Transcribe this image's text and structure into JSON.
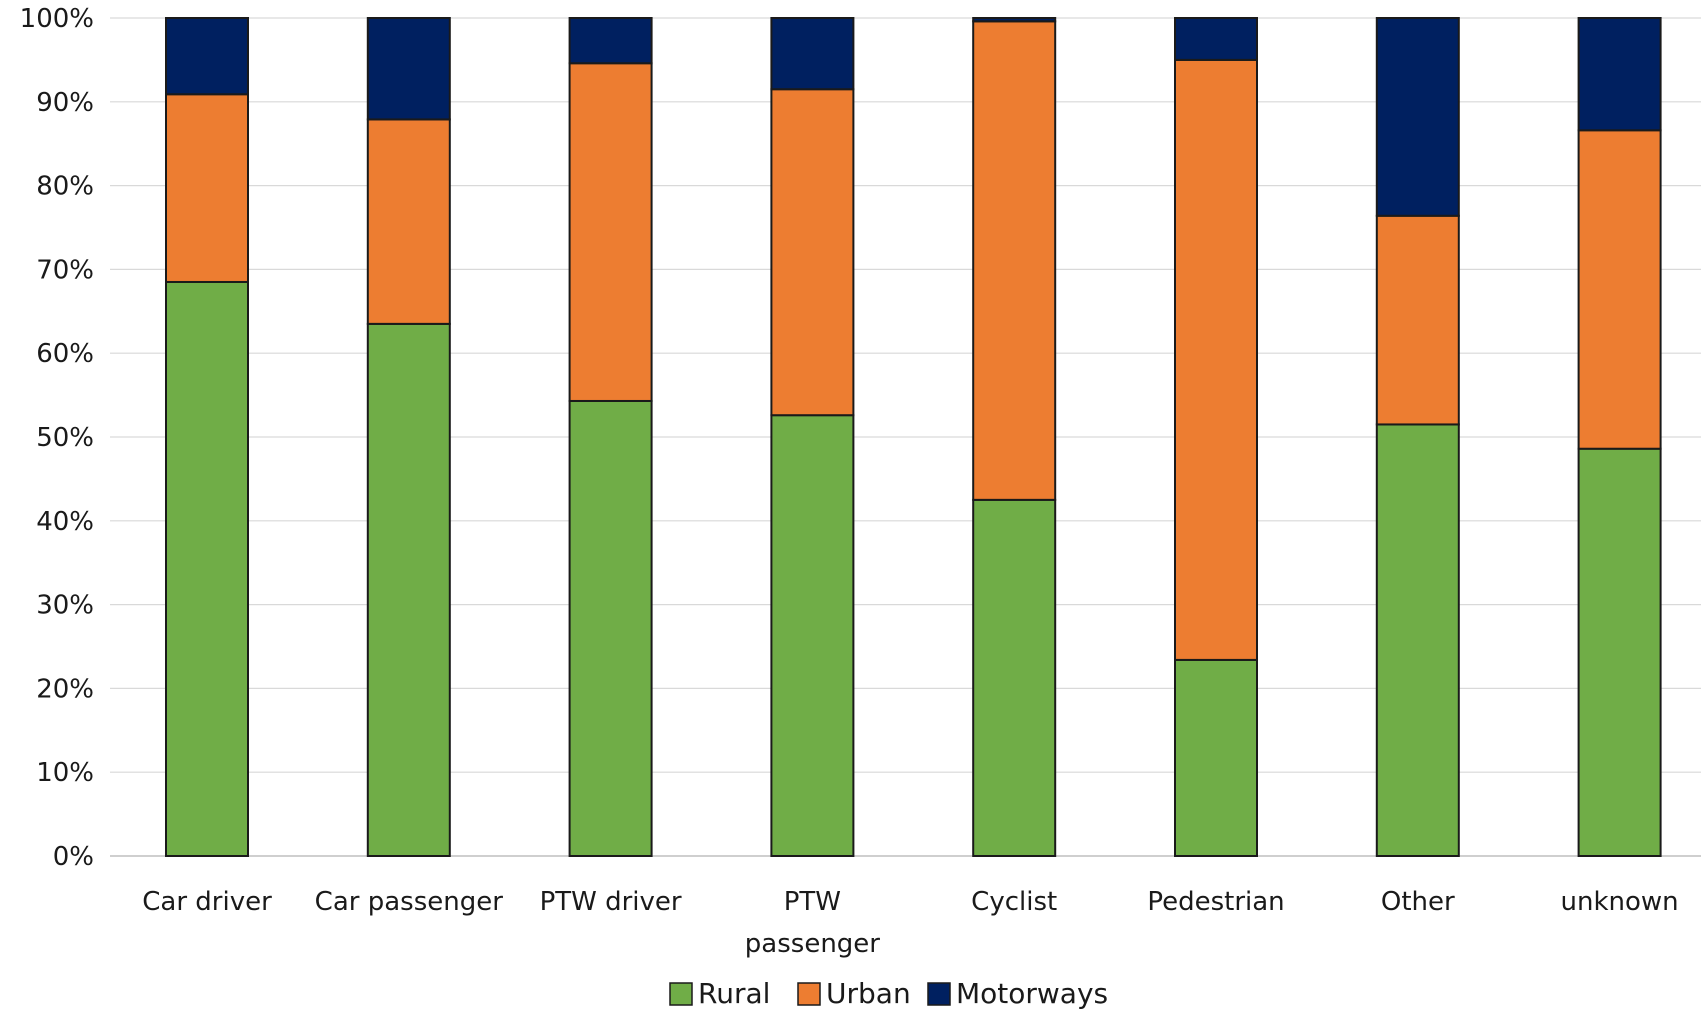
{
  "chart_data": {
    "type": "bar",
    "stacked": true,
    "title": "",
    "xlabel": "",
    "ylabel": "",
    "ylim": [
      0,
      100
    ],
    "y_ticks": [
      "0%",
      "10%",
      "20%",
      "30%",
      "40%",
      "50%",
      "60%",
      "70%",
      "80%",
      "90%",
      "100%"
    ],
    "grid": "horizontal",
    "legend_position": "bottom",
    "categories": [
      [
        "Car driver"
      ],
      [
        "Car passenger"
      ],
      [
        "PTW driver"
      ],
      [
        "PTW",
        "passenger"
      ],
      [
        "Cyclist"
      ],
      [
        "Pedestrian"
      ],
      [
        "Other"
      ],
      [
        "unknown"
      ]
    ],
    "series": [
      {
        "name": "Rural",
        "color": "#70ad47",
        "values": [
          68.5,
          63.5,
          54.3,
          52.6,
          42.5,
          23.4,
          51.5,
          48.6
        ]
      },
      {
        "name": "Urban",
        "color": "#ed7d31",
        "values": [
          22.4,
          24.4,
          40.3,
          38.9,
          57.1,
          71.6,
          24.9,
          38.0
        ]
      },
      {
        "name": "Motorways",
        "color": "#002060",
        "values": [
          9.1,
          12.1,
          5.4,
          8.5,
          0.4,
          5.0,
          23.6,
          13.4
        ]
      }
    ]
  }
}
